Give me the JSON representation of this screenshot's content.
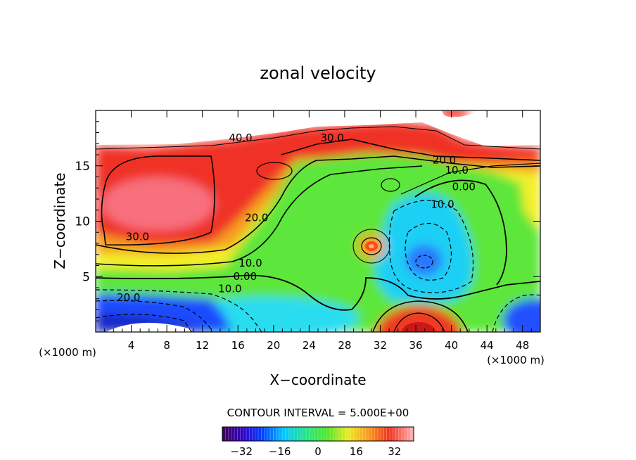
{
  "chart_data": {
    "type": "contour",
    "title": "zonal velocity",
    "xlabel": "X−coordinate",
    "ylabel": "Z−coordinate",
    "x_unit": "(×1000 m)",
    "xlim": [
      0,
      50
    ],
    "ylim": [
      0,
      20
    ],
    "x_ticks": [
      4,
      8,
      12,
      16,
      20,
      24,
      28,
      32,
      36,
      40,
      44,
      48
    ],
    "y_ticks": [
      5,
      10,
      15
    ],
    "contour_interval_text": "CONTOUR INTERVAL = 5.000E+00",
    "contour_labels": [
      {
        "text": "40.0",
        "x": 16.3,
        "y": 17.2
      },
      {
        "text": "30.0",
        "x": 26.6,
        "y": 17.2
      },
      {
        "text": "20.0",
        "x": 39.2,
        "y": 15.2
      },
      {
        "text": "10.0",
        "x": 40.6,
        "y": 14.3
      },
      {
        "text": "0.00",
        "x": 41.4,
        "y": 12.8
      },
      {
        "text": "10.0",
        "x": 39.0,
        "y": 11.2
      },
      {
        "text": "20.0",
        "x": 18.1,
        "y": 10.0
      },
      {
        "text": "30.0",
        "x": 4.7,
        "y": 8.3
      },
      {
        "text": "10.0",
        "x": 17.4,
        "y": 5.9
      },
      {
        "text": "0.00",
        "x": 16.8,
        "y": 4.7
      },
      {
        "text": "10.0",
        "x": 15.1,
        "y": 3.6
      },
      {
        "text": "20.0",
        "x": 3.7,
        "y": 2.8
      }
    ],
    "colorbar": {
      "min": -40,
      "max": 40,
      "ticks": [
        "−32",
        "−16",
        "0",
        "16",
        "32"
      ],
      "tick_values": [
        -32,
        -16,
        0,
        16,
        32
      ]
    }
  }
}
